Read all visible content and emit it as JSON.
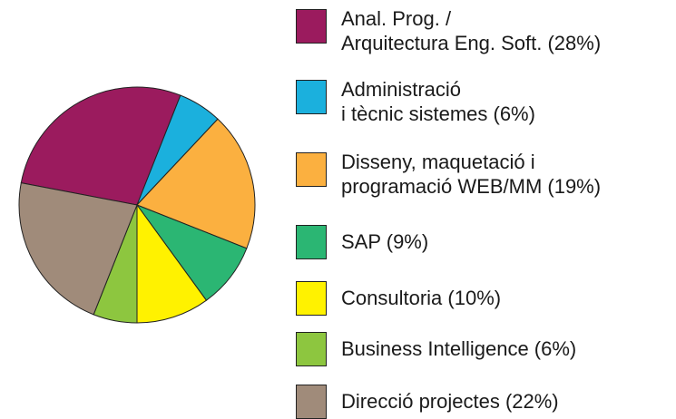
{
  "chart_data": {
    "type": "pie",
    "series": [
      {
        "name": "Anal. Prog. /\nArquitectura Eng. Soft. (28%)",
        "color": "#9b1b5e",
        "values": [
          28
        ]
      },
      {
        "name": "Administració\ni tècnic sistemes (6%)",
        "color": "#1bb0dd",
        "values": [
          6
        ]
      },
      {
        "name": "Disseny, maquetació i\nprogramació WEB/MM (19%)",
        "color": "#fbb040",
        "values": [
          19
        ]
      },
      {
        "name": "SAP (9%)",
        "color": "#2bb673",
        "values": [
          9
        ]
      },
      {
        "name": "Consultoria (10%)",
        "color": "#fff200",
        "values": [
          10
        ]
      },
      {
        "name": "Business Intelligence (6%)",
        "color": "#8dc63f",
        "values": [
          6
        ]
      },
      {
        "name": "Direcció projectes (22%)",
        "color": "#a08b7a",
        "values": [
          22
        ]
      }
    ]
  }
}
